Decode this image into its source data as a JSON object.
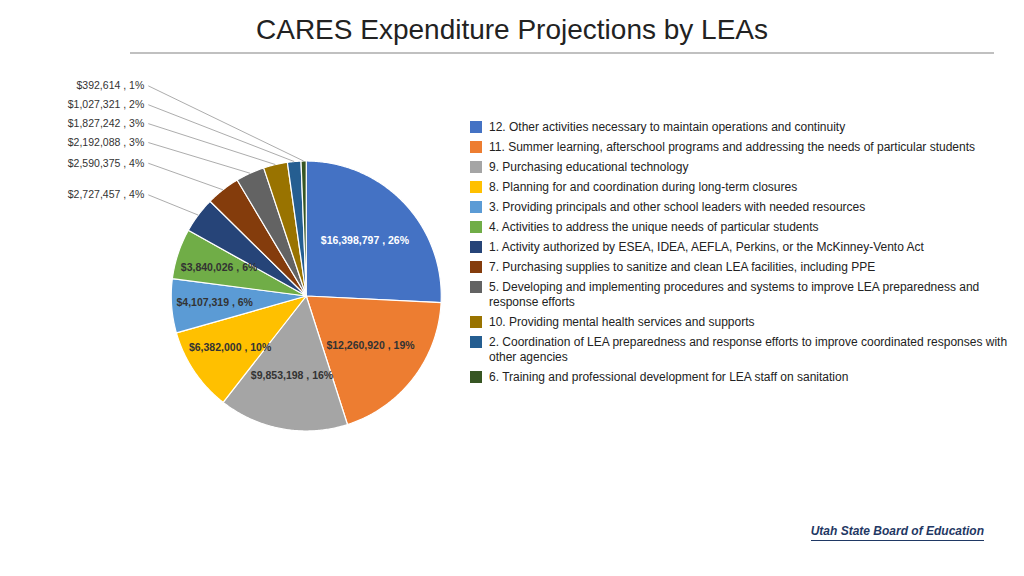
{
  "chart_data": {
    "type": "pie",
    "title": "CARES Expenditure Projections by LEAs",
    "categories": [
      "12. Other activities necessary to maintain operations and continuity",
      "11. Summer learning, afterschool programs and addressing the needs of particular students",
      "9. Purchasing educational technology",
      "8. Planning for and coordination during long-term closures",
      "3. Providing principals and other school leaders with needed resources",
      "4. Activities to address the unique needs of particular students",
      "1. Activity authorized by ESEA, IDEA, AEFLA, Perkins, or the McKinney-Vento Act",
      "7. Purchasing supplies to sanitize and clean LEA facilities, including PPE",
      "5. Developing and implementing procedures and systems to improve LEA preparedness and response efforts",
      "10. Providing mental health services and supports",
      "2. Coordination of LEA preparedness and response efforts to improve coordinated responses with other agencies",
      "6. Training and professional development for LEA staff on sanitation"
    ],
    "values": [
      16398797,
      12260920,
      9853198,
      6382000,
      4107319,
      3840026,
      2727457,
      2590375,
      2192088,
      1827242,
      1027321,
      392614
    ],
    "value_labels": [
      "$16,398,797 , 26%",
      "$12,260,920 , 19%",
      "$9,853,198 , 16%",
      "$6,382,000 , 10%",
      "$4,107,319 , 6%",
      "$3,840,026 , 6%",
      "$2,727,457 , 4%",
      "$2,590,375 , 4%",
      "$2,192,088 , 3%",
      "$1,827,242 , 3%",
      "$1,027,321 , 2%",
      "$392,614 , 1%"
    ],
    "colors": [
      "#4472C4",
      "#ED7D31",
      "#A5A5A5",
      "#FFC000",
      "#5B9BD5",
      "#70AD47",
      "#264478",
      "#843C0C",
      "#636363",
      "#997300",
      "#255E91",
      "#375623"
    ],
    "data_labels": true,
    "legend": "right",
    "caption": "Utah State Board of Education"
  }
}
